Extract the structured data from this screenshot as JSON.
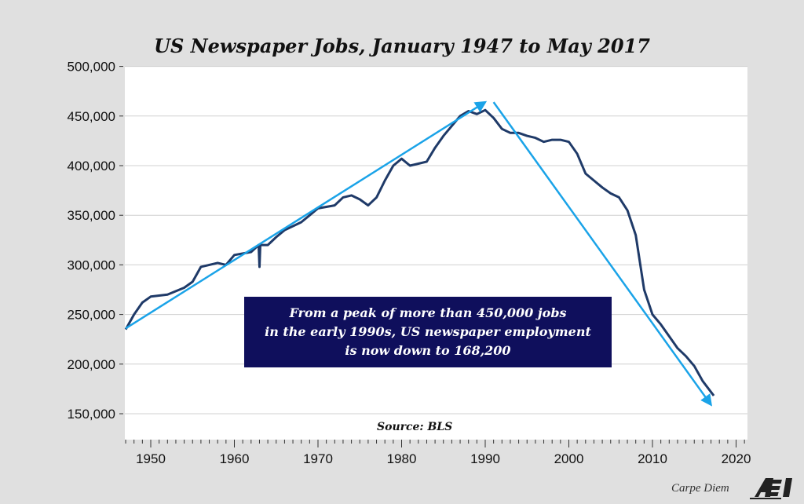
{
  "chart_data": {
    "type": "line",
    "title": "US Newspaper Jobs, January 1947 to May 2017",
    "xlabel": "",
    "ylabel": "",
    "xlim": [
      1947,
      2021
    ],
    "ylim": [
      125000,
      500000
    ],
    "yticks": [
      150000,
      200000,
      250000,
      300000,
      350000,
      400000,
      450000,
      500000
    ],
    "ytick_labels": [
      "150,000",
      "200,000",
      "250,000",
      "300,000",
      "350,000",
      "400,000",
      "450,000",
      "500,000"
    ],
    "xticks": [
      1950,
      1960,
      1970,
      1980,
      1990,
      2000,
      2010,
      2020
    ],
    "xtick_labels": [
      "1950",
      "1960",
      "1970",
      "1980",
      "1990",
      "2000",
      "2010",
      "2020"
    ],
    "grid": "horizontal",
    "series_color": "#1f3a68",
    "arrow_color": "#1aa3e8",
    "series": [
      {
        "x": [
          1947,
          1948,
          1949,
          1950,
          1952,
          1954,
          1955,
          1956,
          1958,
          1959,
          1960,
          1962,
          1962.9,
          1963,
          1963.1,
          1964,
          1965,
          1966,
          1968,
          1969,
          1970,
          1972,
          1973,
          1974,
          1975,
          1976,
          1977,
          1978,
          1979,
          1980,
          1981,
          1982,
          1983,
          1984,
          1985,
          1986,
          1987,
          1988,
          1989,
          1990,
          1991,
          1992,
          1993,
          1994,
          1995,
          1996,
          1997,
          1998,
          1999,
          2000,
          2001,
          2002,
          2003,
          2004,
          2005,
          2006,
          2007,
          2008,
          2009,
          2010,
          2011,
          2012,
          2013,
          2014,
          2015,
          2016,
          2017.33
        ],
        "y": [
          235000,
          250000,
          262000,
          268000,
          270000,
          277000,
          283000,
          298000,
          302000,
          300000,
          310000,
          313000,
          320000,
          298000,
          320000,
          320000,
          328000,
          335000,
          343000,
          350000,
          357000,
          360000,
          368000,
          370000,
          366000,
          360000,
          368000,
          385000,
          400000,
          407000,
          400000,
          402000,
          404000,
          418000,
          430000,
          440000,
          450000,
          455000,
          452000,
          456000,
          448000,
          437000,
          433000,
          433000,
          430000,
          428000,
          424000,
          426000,
          426000,
          424000,
          412000,
          392000,
          385000,
          378000,
          372000,
          368000,
          355000,
          330000,
          275000,
          250000,
          240000,
          228000,
          216000,
          208000,
          198000,
          183000,
          168200
        ]
      }
    ],
    "annotations": {
      "arrows": [
        {
          "from": [
            1947,
            236000
          ],
          "to": [
            1990,
            464000
          ]
        },
        {
          "from": [
            1991,
            464000
          ],
          "to": [
            2017,
            159000
          ]
        }
      ],
      "box_lines": [
        "From a peak of more than 450,000 jobs",
        "in the early 1990s, US newspaper employment",
        "is now down to 168,200"
      ],
      "box_color": "#0f0f5c",
      "source": "Source: BLS"
    }
  },
  "footer": {
    "brand": "Carpe Diem",
    "logo": "AEI"
  }
}
